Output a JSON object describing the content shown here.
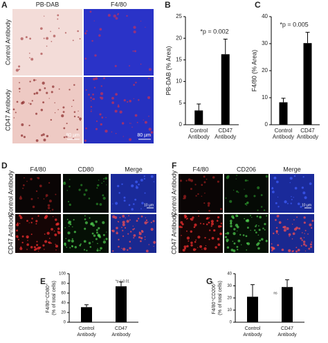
{
  "image_panels": [
    {
      "letter": "A",
      "columns": [
        "PB-DAB",
        "F4/80"
      ],
      "rows": [
        "Control Antibody",
        "CD47 Antibody"
      ],
      "scale_bar": "80 µm"
    },
    {
      "letter": "D",
      "columns": [
        "F4/80",
        "CD80",
        "Merge"
      ],
      "rows": [
        "Control Antibody",
        "CD47 Antibody"
      ],
      "scale_bar": "10 µm"
    },
    {
      "letter": "F",
      "columns": [
        "F4/80",
        "CD206",
        "Merge"
      ],
      "rows": [
        "Control Antibody",
        "CD47 Antibody"
      ],
      "scale_bar": "10 µm"
    }
  ],
  "chart_data": [
    {
      "type": "bar",
      "panel": "B",
      "ylabel": [
        "PB-DAB (% Area)"
      ],
      "annotation": "*p = 0.002",
      "categories": [
        "Control Antibody",
        "CD47 Antibody"
      ],
      "values": [
        3.3,
        16.3
      ],
      "errors": [
        1.5,
        3.5
      ],
      "color": "#000000",
      "ylim": [
        0,
        25
      ],
      "yticks": [
        0,
        5,
        10,
        15,
        20,
        25
      ]
    },
    {
      "type": "bar",
      "panel": "C",
      "ylabel": [
        "F4/80 (% Area)"
      ],
      "annotation": "*p = 0.005",
      "categories": [
        "Control Antibody",
        "CD47 Antibody"
      ],
      "values": [
        8.3,
        30.2
      ],
      "errors": [
        1.5,
        4
      ],
      "color": "#000000",
      "ylim": [
        0,
        40
      ],
      "yticks": [
        0,
        10,
        20,
        30,
        40
      ]
    },
    {
      "type": "bar",
      "panel": "E",
      "ylabel": [
        "F4/80⁺CD80⁺",
        "(% of total cells)"
      ],
      "annotation": "*p = 0.01",
      "categories": [
        "Control Antibody",
        "CD47 Antibody"
      ],
      "values": [
        31,
        74
      ],
      "errors": [
        5,
        9
      ],
      "color": "#000000",
      "ylim": [
        0,
        100
      ],
      "yticks": [
        0,
        20,
        40,
        60,
        80,
        100
      ]
    },
    {
      "type": "bar",
      "panel": "G",
      "ylabel": [
        "F4/80⁺CD206⁺",
        "(% of total cells)"
      ],
      "annotation": "ns",
      "categories": [
        "Control Antibody",
        "CD47 Antibody"
      ],
      "values": [
        21,
        29
      ],
      "errors": [
        10,
        6
      ],
      "color": "#000000",
      "ylim": [
        0,
        40
      ],
      "yticks": [
        0,
        10,
        20,
        30,
        40
      ]
    }
  ]
}
